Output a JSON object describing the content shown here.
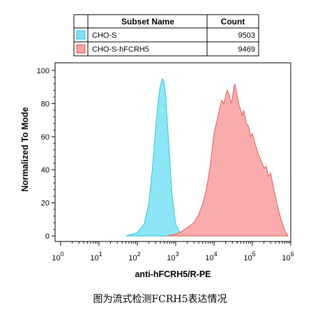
{
  "chart_data": {
    "type": "area",
    "xlabel": "anti-hFCRH5/R-PE",
    "ylabel": "Normalized To Mode",
    "x_scale": "log",
    "xlim": [
      1,
      1000000
    ],
    "ylim": [
      0,
      100
    ],
    "x_ticks": [
      {
        "value": 1,
        "base": "10",
        "exp": "0"
      },
      {
        "value": 10,
        "base": "10",
        "exp": "1"
      },
      {
        "value": 100,
        "base": "10",
        "exp": "2"
      },
      {
        "value": 1000,
        "base": "10",
        "exp": "3"
      },
      {
        "value": 10000,
        "base": "10",
        "exp": "4"
      },
      {
        "value": 100000,
        "base": "10",
        "exp": "5"
      },
      {
        "value": 1000000,
        "base": "10",
        "exp": "6"
      }
    ],
    "y_ticks": [
      {
        "value": 0,
        "label": "0"
      },
      {
        "value": 20,
        "label": "20"
      },
      {
        "value": 40,
        "label": "40"
      },
      {
        "value": 60,
        "label": "60"
      },
      {
        "value": 80,
        "label": "80"
      },
      {
        "value": 100,
        "label": "100"
      }
    ],
    "legend": {
      "header_name": "Subset Name",
      "header_count": "Count"
    },
    "series": [
      {
        "name": "CHO-S",
        "count": "9503",
        "fill": "#7fe3f4",
        "stroke": "#2fc3dc",
        "x": [
          50,
          100,
          150,
          200,
          250,
          300,
          350,
          400,
          450,
          500,
          550,
          600,
          700,
          800,
          1000,
          1300,
          1800,
          2500
        ],
        "y": [
          0,
          2,
          7,
          20,
          42,
          65,
          82,
          91,
          95,
          93,
          84,
          70,
          46,
          25,
          7,
          2,
          0.5,
          0
        ]
      },
      {
        "name": "CHO-S-hFCRH5",
        "count": "9469",
        "fill": "#f9a3a3",
        "stroke": "#e05a5a",
        "x": [
          600,
          1000,
          1500,
          2000,
          3000,
          4000,
          5000,
          6000,
          7000,
          8000,
          9000,
          10000,
          12000,
          14000,
          16000,
          18000,
          20000,
          22000,
          25000,
          28000,
          30000,
          32000,
          35000,
          40000,
          45000,
          50000,
          55000,
          60000,
          70000,
          80000,
          90000,
          100000,
          120000,
          150000,
          180000,
          200000,
          230000,
          260000,
          300000,
          350000,
          400000,
          500000,
          600000,
          700000,
          850000
        ],
        "y": [
          0,
          1,
          3,
          5,
          8,
          13,
          19,
          26,
          34,
          43,
          53,
          62,
          70,
          77,
          82,
          80,
          84,
          88,
          85,
          80,
          83,
          88,
          92,
          85,
          79,
          76,
          73,
          76,
          68,
          66,
          60,
          62,
          55,
          48,
          44,
          41,
          42,
          36,
          38,
          30,
          24,
          14,
          8,
          3,
          0
        ]
      }
    ]
  },
  "caption": "图为流式检测FCRH5表达情况"
}
